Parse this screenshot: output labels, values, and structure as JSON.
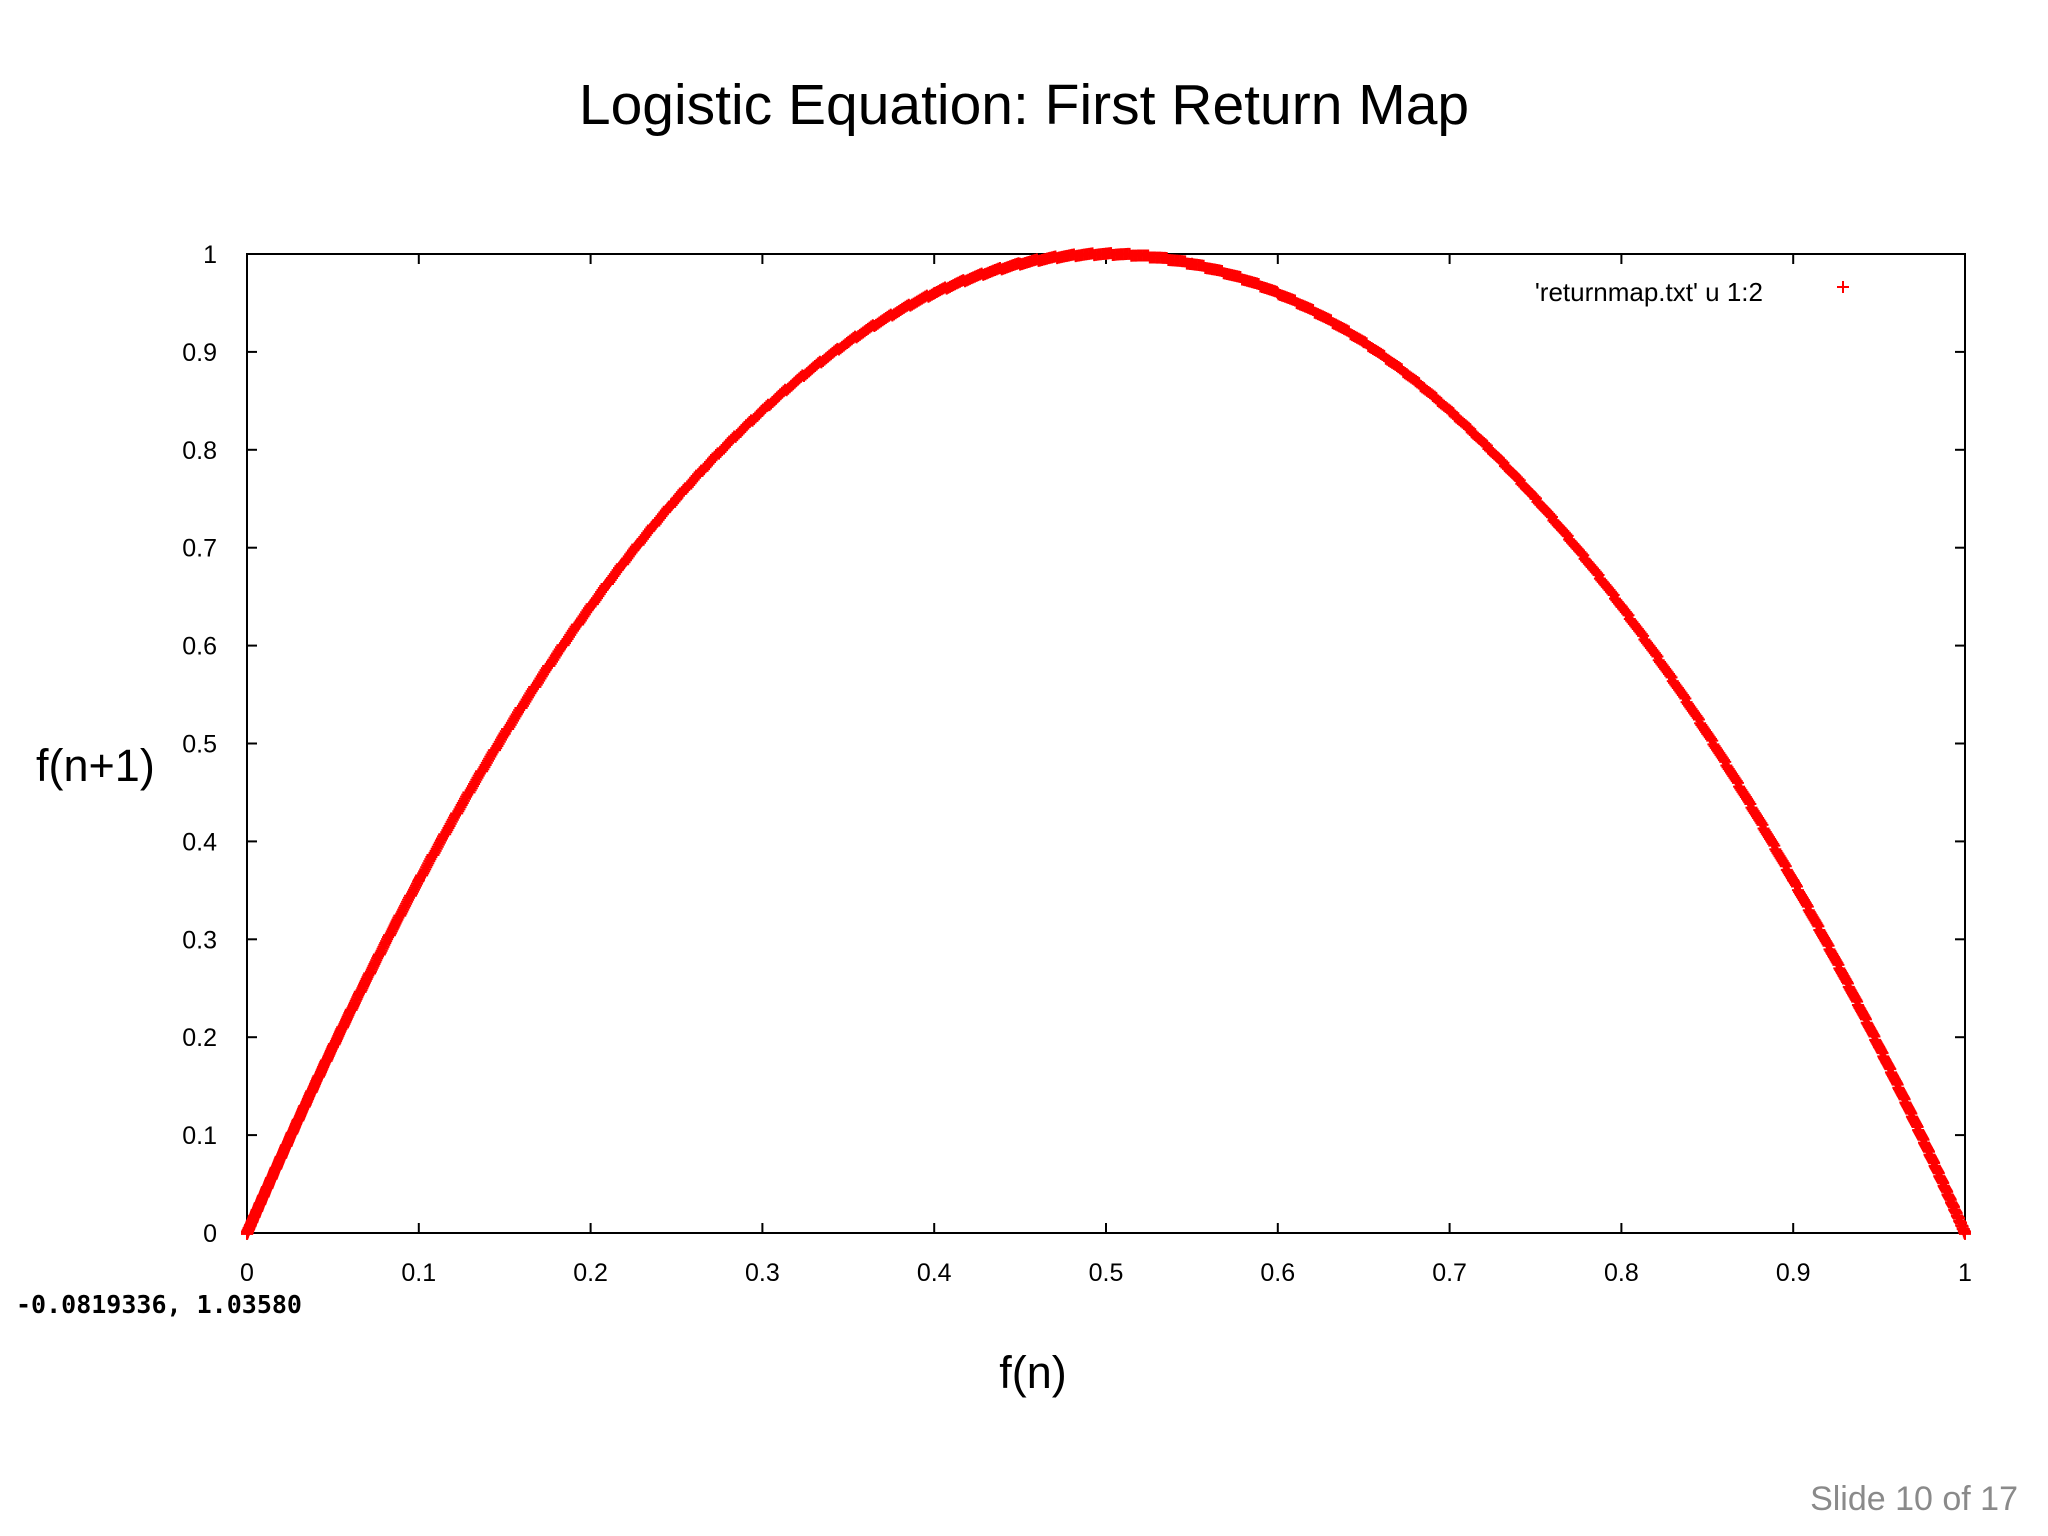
{
  "slide": {
    "title": "Logistic Equation: First Return Map",
    "counter": "Slide 10 of 17",
    "ylabel": "f(n+1)",
    "xlabel": "f(n)",
    "coord_readout": "-0.0819336,  1.03580"
  },
  "colors": {
    "points": "#ff0000",
    "axes": "#000000",
    "background": "#ffffff"
  },
  "chart_data": {
    "type": "scatter",
    "function": "x(n+1) = 4 * x(n) * (1 - x(n))",
    "xlim": [
      0,
      1
    ],
    "ylim": [
      0,
      1
    ],
    "x_ticks": [
      "0",
      "0.1",
      "0.2",
      "0.3",
      "0.4",
      "0.5",
      "0.6",
      "0.7",
      "0.8",
      "0.9",
      "1"
    ],
    "y_ticks": [
      "0",
      "0.1",
      "0.2",
      "0.3",
      "0.4",
      "0.5",
      "0.6",
      "0.7",
      "0.8",
      "0.9",
      "1"
    ],
    "marker": "plus",
    "grid": false,
    "legend": {
      "position": "top-right",
      "label": "'returnmap.txt' u 1:2"
    },
    "series": [
      {
        "name": "'returnmap.txt' u 1:2",
        "points": [
          [
            0,
            0
          ],
          [
            0.02,
            0.078
          ],
          [
            0.05,
            0.19
          ],
          [
            0.1,
            0.36
          ],
          [
            0.15,
            0.51
          ],
          [
            0.2,
            0.64
          ],
          [
            0.25,
            0.75
          ],
          [
            0.3,
            0.84
          ],
          [
            0.35,
            0.91
          ],
          [
            0.4,
            0.96
          ],
          [
            0.45,
            0.99
          ],
          [
            0.5,
            1.0
          ],
          [
            0.55,
            0.99
          ],
          [
            0.6,
            0.96
          ],
          [
            0.65,
            0.91
          ],
          [
            0.7,
            0.84
          ],
          [
            0.75,
            0.75
          ],
          [
            0.8,
            0.64
          ],
          [
            0.85,
            0.51
          ],
          [
            0.9,
            0.36
          ],
          [
            0.95,
            0.19
          ],
          [
            0.98,
            0.078
          ],
          [
            1,
            0
          ]
        ]
      }
    ]
  }
}
